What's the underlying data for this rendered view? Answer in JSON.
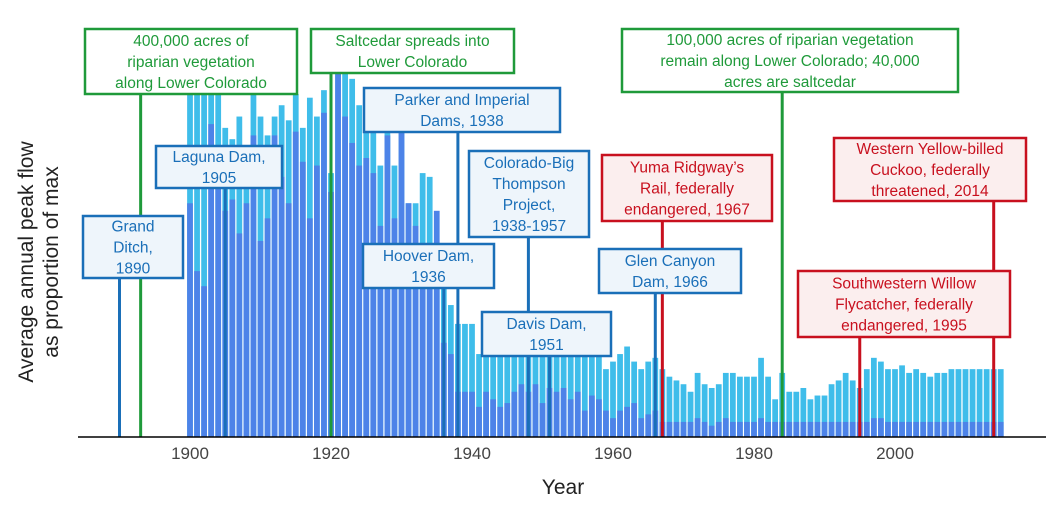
{
  "chart_data": {
    "type": "bar",
    "title": "",
    "xlabel": "Year",
    "ylabel": [
      "Average annual peak flow",
      "as proportion of max"
    ],
    "xlim": [
      1883,
      2020
    ],
    "ylim": [
      0,
      1.0
    ],
    "x_ticks": [
      1900,
      1920,
      1940,
      1960,
      1980,
      2000
    ],
    "grid": false,
    "legend": "none",
    "colors": {
      "peak": "#3fbdea",
      "mean": "#4d83e8",
      "green": "#1f9a3a",
      "blue": "#1a6fb8",
      "red": "#c8101e",
      "blue_fill": "#eef5fb",
      "red_fill": "#fbeeee"
    },
    "series": [
      {
        "x_start": 1900,
        "values": [
          0.62,
          0.44,
          0.4,
          0.83,
          0.76,
          0.6,
          0.63,
          0.54,
          0.62,
          0.8,
          0.52,
          0.58,
          0.8,
          0.69,
          0.62,
          0.81,
          0.73,
          0.58,
          0.72,
          0.86,
          0.65,
          1.0,
          0.85,
          0.78,
          0.72,
          0.74,
          0.7,
          0.56,
          0.8,
          0.58,
          0.82,
          0.62,
          0.56,
          0.5,
          0.47,
          0.6,
          0.25,
          0.22,
          0.12,
          0.12,
          0.12,
          0.08,
          0.12,
          0.1,
          0.08,
          0.09,
          0.12,
          0.14,
          0.12,
          0.14,
          0.09,
          0.13,
          0.12,
          0.13,
          0.1,
          0.12,
          0.07,
          0.11,
          0.1,
          0.07,
          0.05,
          0.07,
          0.08,
          0.09,
          0.05,
          0.06,
          0.07,
          0.04,
          0.04,
          0.04,
          0.04,
          0.04,
          0.05,
          0.04,
          0.03,
          0.04,
          0.05,
          0.04,
          0.04,
          0.04,
          0.04,
          0.05,
          0.04,
          0.04,
          0.04,
          0.04,
          0.04,
          0.04,
          0.04,
          0.04,
          0.04,
          0.04,
          0.04,
          0.04,
          0.04,
          0.04,
          0.04,
          0.05,
          0.05,
          0.04,
          0.04,
          0.04,
          0.04,
          0.04,
          0.04,
          0.04,
          0.04,
          0.04,
          0.04,
          0.04,
          0.04,
          0.04,
          0.04,
          0.04,
          0.04,
          0.04
        ]
      },
      {
        "x_start": 1900,
        "values": [
          0.98,
          0.93,
          0.99,
          0.96,
          0.97,
          0.82,
          0.79,
          0.85,
          0.7,
          0.96,
          0.85,
          0.8,
          0.85,
          0.88,
          0.84,
          0.91,
          0.82,
          0.9,
          0.85,
          0.92,
          0.7,
          1.0,
          1.0,
          0.95,
          0.88,
          0.92,
          0.86,
          0.72,
          0.9,
          0.72,
          0.91,
          0.62,
          0.62,
          0.7,
          0.69,
          0.4,
          0.42,
          0.35,
          0.3,
          0.3,
          0.3,
          0.22,
          0.25,
          0.27,
          0.25,
          0.22,
          0.25,
          0.3,
          0.28,
          0.28,
          0.25,
          0.27,
          0.3,
          0.26,
          0.24,
          0.27,
          0.22,
          0.23,
          0.25,
          0.18,
          0.2,
          0.22,
          0.24,
          0.2,
          0.18,
          0.2,
          0.21,
          0.18,
          0.16,
          0.15,
          0.14,
          0.12,
          0.17,
          0.14,
          0.13,
          0.14,
          0.17,
          0.17,
          0.16,
          0.16,
          0.16,
          0.21,
          0.16,
          0.1,
          0.17,
          0.12,
          0.12,
          0.13,
          0.1,
          0.11,
          0.11,
          0.14,
          0.15,
          0.17,
          0.15,
          0.13,
          0.18,
          0.21,
          0.2,
          0.18,
          0.18,
          0.19,
          0.17,
          0.18,
          0.17,
          0.16,
          0.17,
          0.17,
          0.18,
          0.18,
          0.18,
          0.18,
          0.18,
          0.18,
          0.18,
          0.18
        ]
      }
    ]
  },
  "annotations": [
    {
      "id": "grand-ditch",
      "year": 1890,
      "color": "blue",
      "lines": [
        "Grand",
        "Ditch,",
        "1890"
      ]
    },
    {
      "id": "acres-400k",
      "year": 1893,
      "color": "green",
      "lines": [
        "400,000 acres of",
        "riparian vegetation",
        "along Lower Colorado"
      ]
    },
    {
      "id": "laguna-dam",
      "year": 1905,
      "color": "blue",
      "lines": [
        "Laguna Dam,",
        "1905"
      ]
    },
    {
      "id": "saltcedar",
      "year": 1920,
      "color": "green",
      "lines": [
        "Saltcedar spreads into",
        "Lower Colorado"
      ]
    },
    {
      "id": "parker-imperial",
      "year": 1938,
      "color": "blue",
      "lines": [
        "Parker and Imperial",
        "Dams, 1938"
      ]
    },
    {
      "id": "hoover-dam",
      "year": 1936,
      "color": "blue",
      "lines": [
        "Hoover Dam,",
        "1936"
      ]
    },
    {
      "id": "colorado-big-thompson",
      "year": 1948,
      "color": "blue",
      "lines": [
        "Colorado-Big",
        "Thompson",
        "Project,",
        "1938-1957"
      ]
    },
    {
      "id": "davis-dam",
      "year": 1951,
      "color": "blue",
      "lines": [
        "Davis Dam,",
        "1951"
      ]
    },
    {
      "id": "glen-canyon",
      "year": 1966,
      "color": "blue",
      "lines": [
        "Glen Canyon",
        "Dam, 1966"
      ]
    },
    {
      "id": "yuma-ridgway",
      "year": 1967,
      "color": "red",
      "lines": [
        "Yuma Ridgway’s",
        "Rail, federally",
        "endangered, 1967"
      ]
    },
    {
      "id": "acres-100k",
      "year": 1984,
      "color": "green",
      "lines": [
        "100,000 acres of riparian vegetation",
        "remain along Lower Colorado; 40,000",
        "acres are saltcedar"
      ]
    },
    {
      "id": "sw-willow-flycatcher",
      "year": 1995,
      "color": "red",
      "lines": [
        "Southwestern Willow",
        "Flycatcher, federally",
        "endangered, 1995"
      ]
    },
    {
      "id": "yellow-billed-cuckoo",
      "year": 2014,
      "color": "red",
      "lines": [
        "Western Yellow-billed",
        "Cuckoo, federally",
        "threatened, 2014"
      ]
    }
  ]
}
